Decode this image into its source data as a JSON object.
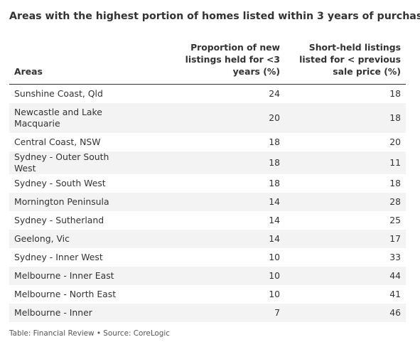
{
  "title": "Areas with the highest portion of homes listed within 3 years of purchase",
  "footer": "Table: Financial Review • Source: CoreLogic",
  "chart_data": {
    "type": "table",
    "columns": [
      "Areas",
      "Proportion of new listings held for <3 years (%)",
      "Short-held listings listed for < previous sale price (%)"
    ],
    "rows": [
      {
        "area": "Sunshine Coast, Qld",
        "proportion": 24,
        "below_price": 18
      },
      {
        "area": "Newcastle and Lake Macquarie",
        "proportion": 20,
        "below_price": 18
      },
      {
        "area": "Central Coast, NSW",
        "proportion": 18,
        "below_price": 20
      },
      {
        "area": "Sydney - Outer South West",
        "proportion": 18,
        "below_price": 11
      },
      {
        "area": "Sydney - South West",
        "proportion": 18,
        "below_price": 18
      },
      {
        "area": "Mornington Peninsula",
        "proportion": 14,
        "below_price": 28
      },
      {
        "area": "Sydney - Sutherland",
        "proportion": 14,
        "below_price": 25
      },
      {
        "area": "Geelong, Vic",
        "proportion": 14,
        "below_price": 17
      },
      {
        "area": "Sydney - Inner West",
        "proportion": 10,
        "below_price": 33
      },
      {
        "area": "Melbourne - Inner East",
        "proportion": 10,
        "below_price": 44
      },
      {
        "area": "Melbourne - North East",
        "proportion": 10,
        "below_price": 41
      },
      {
        "area": "Melbourne - Inner",
        "proportion": 7,
        "below_price": 46
      }
    ]
  }
}
